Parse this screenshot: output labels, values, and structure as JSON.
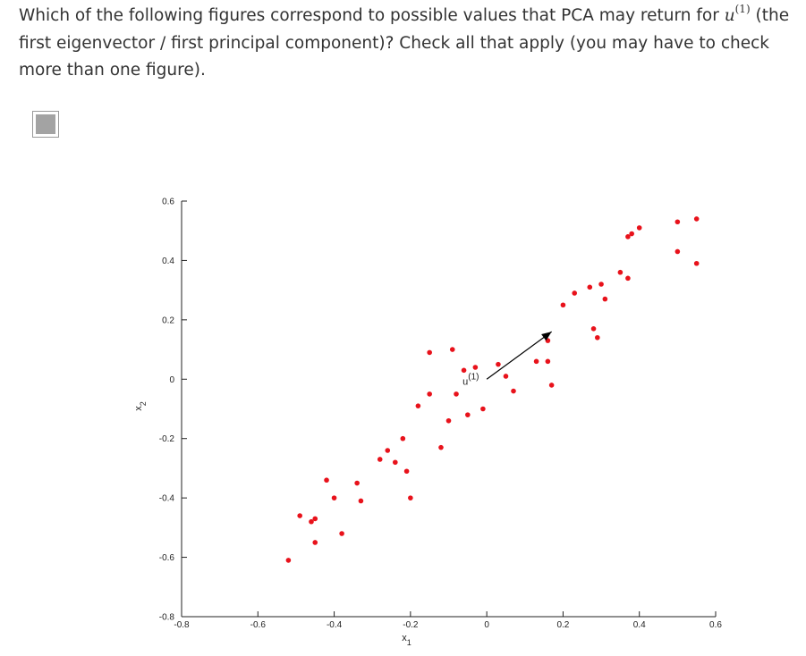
{
  "question": {
    "text_part1": "Which of the following figures correspond to possible values that PCA may return for ",
    "variable": "u",
    "superscript": "(1)",
    "text_part2": " (the first eigenvector / first principal component)? Check all that apply (you may have to check more than one figure)."
  },
  "checkbox": {
    "state": "indeterminate"
  },
  "chart_data": {
    "type": "scatter",
    "xlabel": "x",
    "xlabel_sub": "1",
    "ylabel": "x",
    "ylabel_sub": "2",
    "xlim": [
      -0.8,
      0.6
    ],
    "ylim": [
      -0.8,
      0.6
    ],
    "x_ticks": [
      "-0.8",
      "-0.6",
      "-0.4",
      "-0.2",
      "0",
      "0.2",
      "0.4",
      "0.6"
    ],
    "y_ticks": [
      "0.6",
      "0.4",
      "0.2",
      "0",
      "-0.2",
      "-0.4",
      "-0.6",
      "-0.8"
    ],
    "grid": false,
    "point_color": "#e8121b",
    "arrow_color": "#000000",
    "arrow": {
      "from": [
        0.0,
        0.0
      ],
      "to": [
        0.17,
        0.16
      ],
      "label": "u",
      "label_sup": "(1)"
    },
    "points": [
      [
        -0.52,
        -0.61
      ],
      [
        -0.49,
        -0.46
      ],
      [
        -0.46,
        -0.48
      ],
      [
        -0.45,
        -0.47
      ],
      [
        -0.45,
        -0.55
      ],
      [
        -0.42,
        -0.34
      ],
      [
        -0.4,
        -0.4
      ],
      [
        -0.38,
        -0.52
      ],
      [
        -0.34,
        -0.35
      ],
      [
        -0.33,
        -0.41
      ],
      [
        -0.28,
        -0.27
      ],
      [
        -0.26,
        -0.24
      ],
      [
        -0.24,
        -0.28
      ],
      [
        -0.22,
        -0.2
      ],
      [
        -0.21,
        -0.31
      ],
      [
        -0.2,
        -0.4
      ],
      [
        -0.18,
        -0.09
      ],
      [
        -0.15,
        0.09
      ],
      [
        -0.15,
        -0.05
      ],
      [
        -0.12,
        -0.23
      ],
      [
        -0.1,
        -0.14
      ],
      [
        -0.09,
        0.1
      ],
      [
        -0.08,
        -0.05
      ],
      [
        -0.06,
        0.03
      ],
      [
        -0.05,
        -0.12
      ],
      [
        -0.03,
        0.04
      ],
      [
        -0.01,
        -0.1
      ],
      [
        0.03,
        0.05
      ],
      [
        0.05,
        0.01
      ],
      [
        0.07,
        -0.04
      ],
      [
        0.13,
        0.06
      ],
      [
        0.16,
        0.13
      ],
      [
        0.16,
        0.06
      ],
      [
        0.17,
        -0.02
      ],
      [
        0.2,
        0.25
      ],
      [
        0.23,
        0.29
      ],
      [
        0.27,
        0.31
      ],
      [
        0.3,
        0.32
      ],
      [
        0.28,
        0.17
      ],
      [
        0.29,
        0.14
      ],
      [
        0.31,
        0.27
      ],
      [
        0.35,
        0.36
      ],
      [
        0.37,
        0.34
      ],
      [
        0.37,
        0.48
      ],
      [
        0.38,
        0.49
      ],
      [
        0.4,
        0.51
      ],
      [
        0.5,
        0.53
      ],
      [
        0.5,
        0.43
      ],
      [
        0.55,
        0.54
      ],
      [
        0.55,
        0.39
      ]
    ]
  }
}
